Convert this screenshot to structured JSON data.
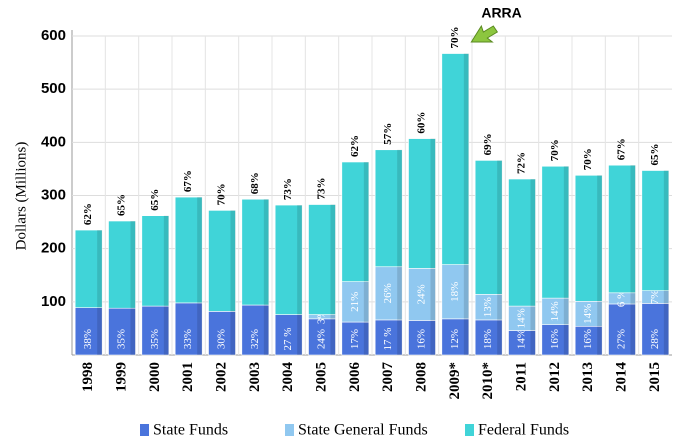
{
  "chart_data": {
    "type": "bar",
    "stacked": true,
    "y_label": "Dollars (Millions)",
    "annotation": "ARRA",
    "categories": [
      "1998",
      "1999",
      "2000",
      "2001",
      "2002",
      "2003",
      "2004",
      "2005",
      "2006",
      "2007",
      "2008",
      "2009*",
      "2010*",
      "2011",
      "2012",
      "2013",
      "2014",
      "2015"
    ],
    "series": [
      {
        "name": "State Funds",
        "color": "#4a74dc",
        "values": [
          89,
          88,
          92,
          98,
          82,
          94,
          76,
          68,
          62,
          66,
          65,
          68,
          66,
          46,
          57,
          54,
          96,
          97
        ],
        "labels": [
          "38%",
          "35%",
          "35%",
          "33%",
          "30%",
          "32%",
          "27 %",
          "24%",
          "17%",
          "17 %",
          "16%",
          "12%",
          "18%",
          "14%",
          "16%",
          "16%",
          "27%",
          "28%"
        ]
      },
      {
        "name": "State General Funds",
        "color": "#90c8f0",
        "values": [
          null,
          null,
          null,
          null,
          null,
          null,
          null,
          8,
          76,
          100,
          98,
          102,
          48,
          46,
          50,
          47,
          21,
          24
        ],
        "labels": [
          null,
          null,
          null,
          null,
          null,
          null,
          null,
          "3%",
          "21%",
          "26%",
          "24%",
          "18%",
          "13%",
          "14%",
          "14%",
          "14%",
          "6 %",
          "7%"
        ]
      },
      {
        "name": "Federal Funds",
        "color": "#40d4d8",
        "values": [
          146,
          164,
          170,
          199,
          190,
          199,
          206,
          207,
          225,
          220,
          244,
          397,
          252,
          239,
          248,
          237,
          240,
          226
        ],
        "labels": [
          "62%",
          "65%",
          "65%",
          "67%",
          "70%",
          "68%",
          "73%",
          "73%",
          "62%",
          "57%",
          "60%",
          "70%",
          "69%",
          "72%",
          "70%",
          "70%",
          "67%",
          "65%"
        ]
      }
    ],
    "ylim": [
      0,
      600
    ],
    "yticks": [
      100,
      200,
      300,
      400,
      500,
      600
    ],
    "grid": true
  }
}
